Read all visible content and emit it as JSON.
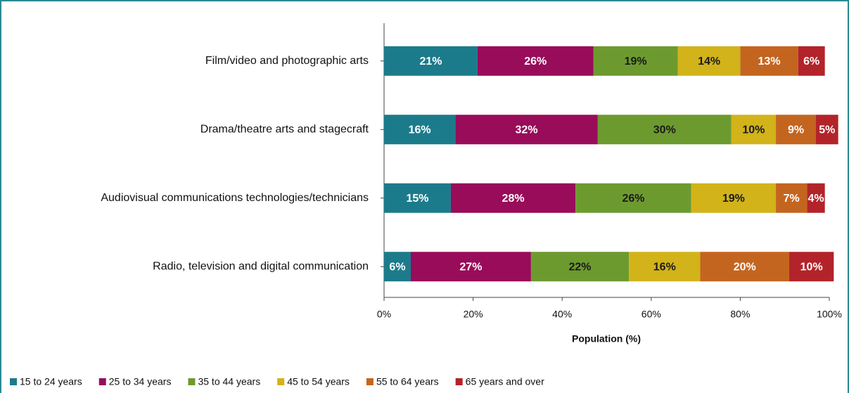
{
  "chart_data": {
    "type": "stacked-barh",
    "categories": [
      "Film/video and photographic arts",
      "Drama/theatre arts and stagecraft",
      "Audiovisual communications technologies/technicians",
      "Radio, television and digital communication"
    ],
    "series": [
      {
        "name": "15 to 24 years",
        "color": "#1b7b8b",
        "values": [
          21,
          16,
          15,
          6
        ]
      },
      {
        "name": "25 to 34 years",
        "color": "#980c5a",
        "values": [
          26,
          32,
          28,
          27
        ]
      },
      {
        "name": "35 to 44 years",
        "color": "#6d9a2f",
        "values": [
          19,
          30,
          26,
          22
        ]
      },
      {
        "name": "45 to 54 years",
        "color": "#d2b31a",
        "values": [
          14,
          10,
          19,
          16
        ]
      },
      {
        "name": "55 to 64 years",
        "color": "#c4651f",
        "values": [
          13,
          9,
          7,
          20
        ]
      },
      {
        "name": "65 years and over",
        "color": "#b3232a",
        "values": [
          6,
          5,
          4,
          10
        ]
      }
    ],
    "value_labels": [
      [
        "21%",
        "16%",
        "15%",
        "6%"
      ],
      [
        "26%",
        "32%",
        "28%",
        "27%"
      ],
      [
        "19%",
        "30%",
        "26%",
        "22%"
      ],
      [
        "14%",
        "10%",
        "19%",
        "16%"
      ],
      [
        "13%",
        "9%",
        "7%",
        "20%"
      ],
      [
        "6%",
        "5%",
        "4%",
        "10%"
      ]
    ],
    "xlabel": "Population (%)",
    "xlim": [
      0,
      100
    ],
    "xticks": [
      {
        "value": 0,
        "label": "0%"
      },
      {
        "value": 20,
        "label": "20%"
      },
      {
        "value": 40,
        "label": "40%"
      },
      {
        "value": 60,
        "label": "60%"
      },
      {
        "value": 80,
        "label": "80%"
      },
      {
        "value": 100,
        "label": "100%"
      }
    ],
    "legend": "bottom"
  }
}
